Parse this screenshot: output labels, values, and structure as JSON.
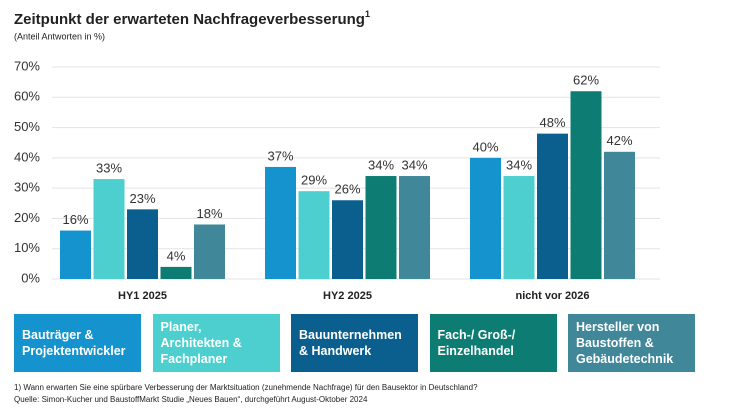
{
  "chart_data": {
    "type": "bar",
    "title": "Zeitpunkt der erwarteten Nachfrageverbesserung",
    "title_note": "1",
    "subtitle": "(Anteil Antworten in %)",
    "categories": [
      "HY1 2025",
      "HY2 2025",
      "nicht vor 2026"
    ],
    "series": [
      {
        "name": "Bauträger & Projektentwickler",
        "color": "#1593cf",
        "values": [
          16,
          37,
          40
        ],
        "value_labels": [
          "16%",
          "37%",
          "40%"
        ]
      },
      {
        "name": "Planer, Architekten & Fachplaner",
        "color": "#4dcfcf",
        "values": [
          33,
          29,
          34
        ],
        "value_labels": [
          "33%",
          "29%",
          "34%"
        ]
      },
      {
        "name": "Bauunternehmen & Handwerk",
        "color": "#0b5f8f",
        "values": [
          23,
          26,
          48
        ],
        "value_labels": [
          "23%",
          "26%",
          "48%"
        ]
      },
      {
        "name": "Fach-/ Groß-/ Einzelhandel",
        "color": "#0d7d74",
        "values": [
          4,
          34,
          62
        ],
        "value_labels": [
          "4%",
          "34%",
          "62%"
        ]
      },
      {
        "name": "Hersteller von Baustoffen & Gebäudetechnik",
        "color": "#3f8799",
        "values": [
          18,
          34,
          42
        ],
        "value_labels": [
          "18%",
          "34%",
          "42%"
        ]
      }
    ],
    "ylim": [
      0,
      70
    ],
    "yticks": [
      {
        "value": 0,
        "label": "0%"
      },
      {
        "value": 10,
        "label": "10%"
      },
      {
        "value": 20,
        "label": "20%"
      },
      {
        "value": 30,
        "label": "30%"
      },
      {
        "value": 40,
        "label": "40%"
      },
      {
        "value": 50,
        "label": "50%"
      },
      {
        "value": 60,
        "label": "60%"
      },
      {
        "value": 70,
        "label": "70%"
      }
    ],
    "grid": true,
    "footnotes": [
      "1) Wann erwarten Sie eine spürbare Verbesserung der Marktsituation (zunehmende Nachfrage) für den Bausektor in Deutschland?",
      "Quelle: Simon-Kucher und BaustoffMarkt Studie „Neues Bauen“, durchgeführt August-Oktober 2024"
    ]
  }
}
